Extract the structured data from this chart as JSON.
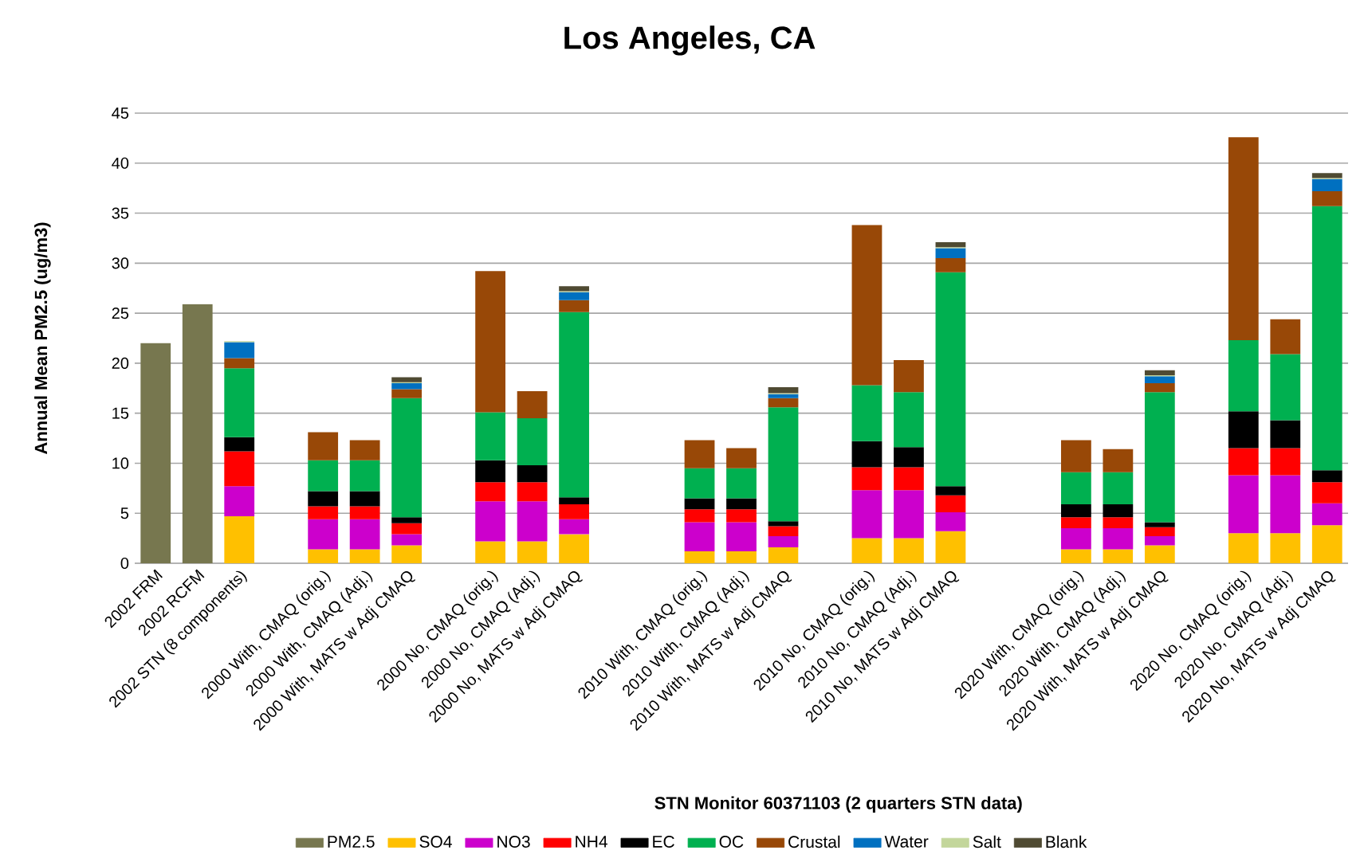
{
  "chart_data": {
    "type": "bar",
    "stacked": true,
    "title": "Los Angeles, CA",
    "xlabel": "STN Monitor 60371103  (2 quarters STN data)",
    "ylabel": "Annual Mean PM2.5 (ug/m3)",
    "categories": [
      "2002 FRM",
      "2002 RCFM",
      "2002 STN (8 components)",
      null,
      "2000 With, CMAQ (orig.)",
      "2000 With, CMAQ (Adj.)",
      "2000 With, MATS w Adj CMAQ",
      null,
      "2000 No, CMAQ (orig.)",
      "2000 No, CMAQ (Adj.)",
      "2000 No, MATS w Adj CMAQ",
      null,
      null,
      "2010 With, CMAQ (orig.)",
      "2010 With, CMAQ (Adj.)",
      "2010 With, MATS w Adj CMAQ",
      null,
      "2010 No, CMAQ (orig.)",
      "2010 No, CMAQ (Adj.)",
      "2010 No, MATS w Adj CMAQ",
      null,
      null,
      "2020 With, CMAQ (orig.)",
      "2020 With, CMAQ (Adj.)",
      "2020 With, MATS w Adj CMAQ",
      null,
      "2020 No, CMAQ (orig.)",
      "2020 No, CMAQ (Adj.)",
      "2020 No, MATS w Adj CMAQ"
    ],
    "series": [
      {
        "name": "PM2.5",
        "color": "#77774f",
        "values": [
          22.0,
          25.9,
          null,
          null,
          null,
          null,
          null,
          null,
          null,
          null,
          null,
          null,
          null,
          null,
          null,
          null,
          null,
          null,
          null,
          null,
          null,
          null,
          null,
          null,
          null,
          null,
          null,
          null,
          null
        ]
      },
      {
        "name": "SO4",
        "color": "#ffc000",
        "values": [
          null,
          null,
          4.7,
          null,
          1.4,
          1.4,
          1.8,
          null,
          2.2,
          2.2,
          2.9,
          null,
          null,
          1.2,
          1.2,
          1.6,
          null,
          2.5,
          2.5,
          3.2,
          null,
          null,
          1.4,
          1.4,
          1.8,
          null,
          3.0,
          3.0,
          3.8
        ]
      },
      {
        "name": "NO3",
        "color": "#cc00cc",
        "values": [
          null,
          null,
          3.0,
          null,
          3.0,
          3.0,
          1.1,
          null,
          4.0,
          4.0,
          1.5,
          null,
          null,
          2.9,
          2.9,
          1.1,
          null,
          4.8,
          4.8,
          1.9,
          null,
          null,
          2.1,
          2.1,
          0.9,
          null,
          5.8,
          5.8,
          2.2
        ]
      },
      {
        "name": "NH4",
        "color": "#ff0000",
        "values": [
          null,
          null,
          3.5,
          null,
          1.3,
          1.3,
          1.1,
          null,
          1.9,
          1.9,
          1.5,
          null,
          null,
          1.3,
          1.3,
          1.0,
          null,
          2.3,
          2.3,
          1.7,
          null,
          null,
          1.1,
          1.1,
          0.9,
          null,
          2.7,
          2.7,
          2.1
        ]
      },
      {
        "name": "EC",
        "color": "#000000",
        "values": [
          null,
          null,
          1.4,
          null,
          1.5,
          1.5,
          0.6,
          null,
          2.2,
          1.7,
          0.7,
          null,
          null,
          1.1,
          1.1,
          0.5,
          null,
          2.6,
          2.0,
          0.9,
          null,
          null,
          1.3,
          1.3,
          0.5,
          null,
          3.7,
          2.8,
          1.2
        ]
      },
      {
        "name": "OC",
        "color": "#00b050",
        "values": [
          null,
          null,
          6.9,
          null,
          3.1,
          3.1,
          11.9,
          null,
          4.8,
          4.7,
          18.5,
          null,
          null,
          3.0,
          3.0,
          11.4,
          null,
          5.6,
          5.5,
          21.4,
          null,
          null,
          3.2,
          3.2,
          13.0,
          null,
          7.1,
          6.6,
          26.4
        ]
      },
      {
        "name": "Crustal",
        "color": "#984807",
        "values": [
          null,
          null,
          1.0,
          null,
          2.8,
          2.0,
          0.9,
          null,
          14.1,
          2.7,
          1.2,
          null,
          null,
          2.8,
          2.0,
          0.9,
          null,
          16.0,
          3.2,
          1.4,
          null,
          null,
          3.2,
          2.3,
          0.9,
          null,
          20.3,
          3.5,
          1.5
        ]
      },
      {
        "name": "Water",
        "color": "#0070c0",
        "values": [
          null,
          null,
          1.6,
          null,
          null,
          null,
          0.6,
          null,
          null,
          null,
          0.8,
          null,
          null,
          null,
          null,
          0.4,
          null,
          null,
          null,
          1.0,
          null,
          null,
          null,
          null,
          0.7,
          null,
          null,
          null,
          1.2
        ]
      },
      {
        "name": "Salt",
        "color": "#c3d69b",
        "values": [
          null,
          null,
          0.1,
          null,
          null,
          null,
          0.1,
          null,
          null,
          null,
          0.1,
          null,
          null,
          null,
          null,
          0.1,
          null,
          null,
          null,
          0.1,
          null,
          null,
          null,
          null,
          0.1,
          null,
          null,
          null,
          0.1
        ]
      },
      {
        "name": "Blank",
        "color": "#4f4a32",
        "values": [
          null,
          null,
          null,
          null,
          null,
          null,
          0.5,
          null,
          null,
          null,
          0.5,
          null,
          null,
          null,
          null,
          0.6,
          null,
          null,
          null,
          0.5,
          null,
          null,
          null,
          null,
          0.5,
          null,
          null,
          null,
          0.5
        ]
      }
    ],
    "ylim": [
      0,
      45
    ],
    "yticks": [
      0,
      5,
      10,
      15,
      20,
      25,
      30,
      35,
      40,
      45
    ],
    "grid": "y",
    "legend": "bottom"
  }
}
